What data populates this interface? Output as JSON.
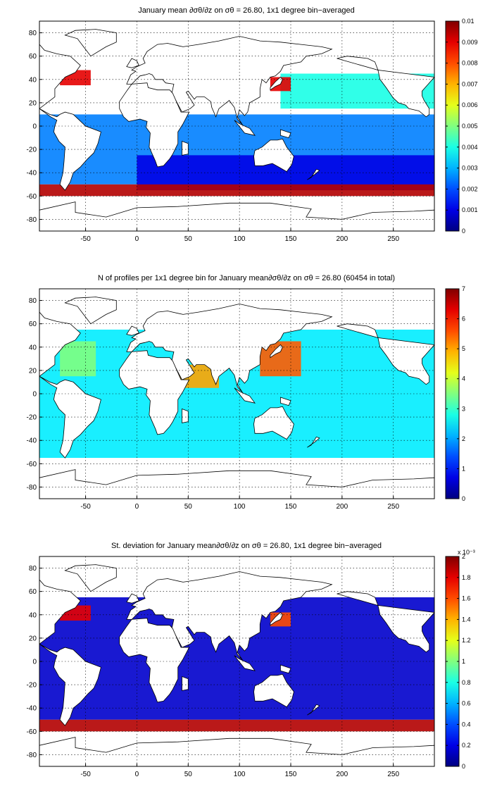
{
  "chart_data": [
    {
      "type": "heatmap",
      "title": "January mean ∂σθ/∂z on σθ = 26.80, 1x1 degree bin−averaged",
      "xlim": [
        -95,
        290
      ],
      "ylim": [
        -90,
        90
      ],
      "xticks": [
        "-50",
        "0",
        "50",
        "100",
        "150",
        "200",
        "250"
      ],
      "yticks": [
        "80",
        "60",
        "40",
        "20",
        "0",
        "-20",
        "-40",
        "-60",
        "-80"
      ],
      "grid": true,
      "colormap": "jet",
      "colorbar": {
        "min": 0,
        "max": 0.01,
        "ticks": [
          "0.01",
          "0.009",
          "0.008",
          "0.007",
          "0.006",
          "0.005",
          "0.004",
          "0.003",
          "0.002",
          "0.001",
          "0"
        ],
        "exponent": ""
      },
      "regions": [
        {
          "lon": [
            -95,
            290
          ],
          "lat": [
            -50,
            10
          ],
          "value": 0.0025
        },
        {
          "lon": [
            0,
            290
          ],
          "lat": [
            -55,
            -25
          ],
          "value": 0.001
        },
        {
          "lon": [
            140,
            290
          ],
          "lat": [
            15,
            45
          ],
          "value": 0.004
        },
        {
          "lon": [
            -75,
            -45
          ],
          "lat": [
            35,
            48
          ],
          "value": 0.009
        },
        {
          "lon": [
            130,
            150
          ],
          "lat": [
            30,
            42
          ],
          "value": 0.009
        },
        {
          "lon": [
            -95,
            290
          ],
          "lat": [
            -60,
            -50
          ],
          "value": 0.0095
        }
      ]
    },
    {
      "type": "heatmap",
      "title": "N of profiles per 1x1 degree bin for January mean∂σθ/∂z on σθ = 26.80 (60454 in total)",
      "xlim": [
        -95,
        290
      ],
      "ylim": [
        -90,
        90
      ],
      "xticks": [
        "-50",
        "0",
        "50",
        "100",
        "150",
        "200",
        "250"
      ],
      "yticks": [
        "80",
        "60",
        "40",
        "20",
        "0",
        "-20",
        "-40",
        "-60",
        "-80"
      ],
      "grid": true,
      "colormap": "jet",
      "colorbar": {
        "min": 0,
        "max": 7,
        "ticks": [
          "7",
          "6",
          "5",
          "4",
          "3",
          "2",
          "1",
          "0"
        ],
        "exponent": ""
      },
      "regions": [
        {
          "lon": [
            -95,
            290
          ],
          "lat": [
            -55,
            55
          ],
          "value": 2.5
        },
        {
          "lon": [
            120,
            160
          ],
          "lat": [
            15,
            45
          ],
          "value": 5.5
        },
        {
          "lon": [
            40,
            80
          ],
          "lat": [
            5,
            25
          ],
          "value": 5.0
        },
        {
          "lon": [
            -75,
            -40
          ],
          "lat": [
            15,
            45
          ],
          "value": 3.5
        }
      ]
    },
    {
      "type": "heatmap",
      "title": "St. deviation for January mean∂σθ/∂z on σθ = 26.80, 1x1 degree bin−averaged",
      "xlim": [
        -95,
        290
      ],
      "ylim": [
        -90,
        90
      ],
      "xticks": [
        "-50",
        "0",
        "50",
        "100",
        "150",
        "200",
        "250"
      ],
      "yticks": [
        "80",
        "60",
        "40",
        "20",
        "0",
        "-20",
        "-40",
        "-60",
        "-80"
      ],
      "grid": true,
      "colormap": "jet",
      "colorbar": {
        "min": 0,
        "max": 2,
        "ticks": [
          "2",
          "1.8",
          "1.6",
          "1.4",
          "1.2",
          "1",
          "0.8",
          "0.6",
          "0.4",
          "0.2",
          "0"
        ],
        "exponent": "x 10⁻³"
      },
      "regions": [
        {
          "lon": [
            -95,
            290
          ],
          "lat": [
            -50,
            55
          ],
          "value": 0.15
        },
        {
          "lon": [
            -75,
            -45
          ],
          "lat": [
            35,
            48
          ],
          "value": 1.8
        },
        {
          "lon": [
            130,
            150
          ],
          "lat": [
            30,
            42
          ],
          "value": 1.6
        },
        {
          "lon": [
            -95,
            290
          ],
          "lat": [
            -60,
            -50
          ],
          "value": 1.9
        }
      ]
    }
  ]
}
